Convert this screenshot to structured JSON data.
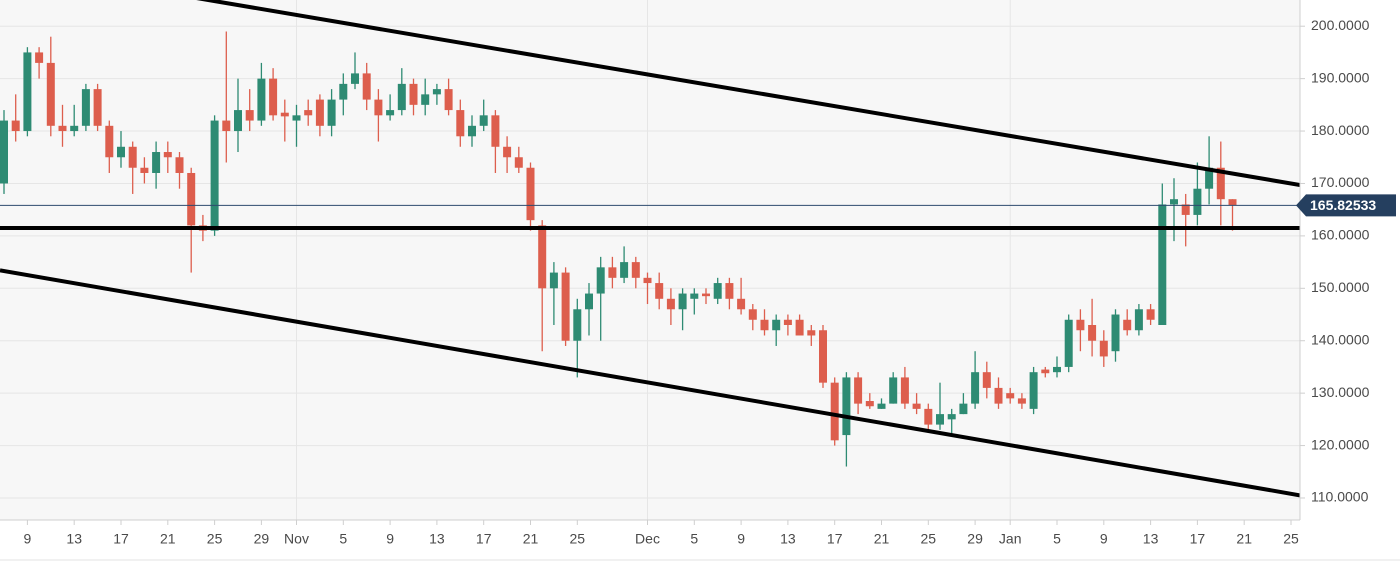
{
  "chart_data": {
    "type": "candlestick",
    "categories": [
      null,
      null,
      "9",
      null,
      null,
      null,
      "13",
      null,
      null,
      null,
      "17",
      null,
      null,
      null,
      "21",
      null,
      null,
      null,
      "25",
      null,
      null,
      null,
      "29",
      null,
      null,
      "Nov",
      null,
      null,
      null,
      "5",
      null,
      null,
      null,
      "9",
      null,
      null,
      null,
      "13",
      null,
      null,
      null,
      "17",
      null,
      null,
      null,
      "21",
      null,
      null,
      null,
      "25",
      null,
      null,
      null,
      null,
      null,
      "Dec",
      null,
      null,
      null,
      "5",
      null,
      null,
      null,
      "9",
      null,
      null,
      null,
      "13",
      null,
      null,
      null,
      "17",
      null,
      null,
      null,
      "21",
      null,
      null,
      null,
      "25",
      null,
      null,
      null,
      "29",
      null,
      null,
      "Jan",
      null,
      null,
      null,
      "5",
      null,
      null,
      null,
      "9",
      null,
      null,
      null,
      "13",
      null,
      null,
      null,
      "17",
      null,
      null,
      null,
      "21",
      null,
      null,
      null,
      "25"
    ],
    "candles": [
      [
        170,
        184,
        168,
        182
      ],
      [
        182,
        187,
        178,
        180
      ],
      [
        180,
        196,
        179,
        195
      ],
      [
        195,
        196,
        190,
        193
      ],
      [
        193,
        198,
        179,
        181
      ],
      [
        181,
        185,
        177,
        180
      ],
      [
        180,
        185,
        179,
        181
      ],
      [
        181,
        189,
        180,
        188
      ],
      [
        188,
        189,
        180,
        181
      ],
      [
        181,
        182,
        172,
        175
      ],
      [
        175,
        180,
        173,
        177
      ],
      [
        177,
        178,
        168,
        173
      ],
      [
        173,
        175,
        170,
        172
      ],
      [
        172,
        178,
        169,
        176
      ],
      [
        176,
        178,
        172,
        175
      ],
      [
        175,
        176,
        169,
        172
      ],
      [
        172,
        173,
        153,
        162
      ],
      [
        162,
        164,
        159,
        161
      ],
      [
        161,
        183,
        160,
        182
      ],
      [
        182,
        199,
        174,
        180
      ],
      [
        180,
        190,
        176,
        184
      ],
      [
        184,
        188,
        180,
        182
      ],
      [
        182,
        193,
        181,
        190
      ],
      [
        190,
        192,
        182,
        183
      ],
      [
        183.5,
        186,
        178,
        182.8
      ],
      [
        182,
        185,
        177,
        183
      ],
      [
        184,
        186,
        181,
        183
      ],
      [
        186,
        187,
        179,
        181
      ],
      [
        181,
        188,
        179,
        186
      ],
      [
        186,
        191,
        183,
        189
      ],
      [
        189,
        195,
        188,
        191
      ],
      [
        191,
        193,
        184,
        186
      ],
      [
        186,
        188,
        178,
        183
      ],
      [
        183,
        187,
        182,
        184
      ],
      [
        184,
        192,
        183,
        189
      ],
      [
        189,
        190,
        183,
        185
      ],
      [
        185,
        190,
        183,
        187
      ],
      [
        187,
        189,
        185,
        188
      ],
      [
        188,
        190,
        183,
        184
      ],
      [
        184,
        186,
        177,
        179
      ],
      [
        179,
        183,
        177,
        181
      ],
      [
        181,
        186,
        180,
        183
      ],
      [
        183,
        184,
        172,
        177
      ],
      [
        177,
        179,
        172,
        175
      ],
      [
        175,
        177,
        172,
        173
      ],
      [
        173,
        174,
        161,
        163
      ],
      [
        162,
        163,
        138,
        150
      ],
      [
        150,
        155,
        143,
        153
      ],
      [
        153,
        154,
        139,
        140
      ],
      [
        140,
        148,
        133,
        146
      ],
      [
        146,
        151,
        141,
        149
      ],
      [
        149,
        156,
        140,
        154
      ],
      [
        154,
        156,
        150,
        152
      ],
      [
        152,
        158,
        151,
        155
      ],
      [
        155,
        156,
        150,
        152
      ],
      [
        152,
        153,
        147,
        151
      ],
      [
        151,
        153,
        146,
        148
      ],
      [
        148,
        150,
        143,
        146
      ],
      [
        146,
        150,
        142,
        149
      ],
      [
        148,
        150,
        145,
        149
      ],
      [
        149,
        150,
        147,
        148.5
      ],
      [
        148,
        152,
        147,
        151
      ],
      [
        151,
        152,
        146,
        148
      ],
      [
        148,
        152,
        145,
        146
      ],
      [
        146,
        147,
        142,
        144
      ],
      [
        144,
        146,
        141,
        142
      ],
      [
        142,
        145,
        139,
        144
      ],
      [
        144,
        145,
        141,
        143
      ],
      [
        144,
        145,
        141,
        141
      ],
      [
        142,
        143,
        139,
        141
      ],
      [
        142,
        143,
        131,
        132
      ],
      [
        132,
        133,
        120,
        121
      ],
      [
        122,
        134,
        116,
        133
      ],
      [
        133,
        134,
        126,
        128
      ],
      [
        128.5,
        130,
        127,
        127.5
      ],
      [
        127,
        129,
        127,
        128
      ],
      [
        128,
        134,
        128,
        133
      ],
      [
        133,
        135,
        127,
        128
      ],
      [
        128,
        130,
        126,
        127
      ],
      [
        127,
        128,
        123,
        124
      ],
      [
        124,
        132,
        123,
        126
      ],
      [
        125,
        127,
        122,
        126
      ],
      [
        126,
        130,
        126,
        128
      ],
      [
        128,
        138,
        127,
        134
      ],
      [
        134,
        136,
        129,
        131
      ],
      [
        131,
        133,
        127,
        128
      ],
      [
        130,
        131,
        128,
        129
      ],
      [
        129,
        130,
        127,
        128
      ],
      [
        127,
        135,
        126,
        134
      ],
      [
        134.5,
        135,
        133,
        133.8
      ],
      [
        134,
        137,
        133,
        135
      ],
      [
        135,
        145,
        134,
        144
      ],
      [
        144,
        146,
        138,
        142
      ],
      [
        143,
        148,
        137,
        140
      ],
      [
        140,
        142,
        135,
        137
      ],
      [
        138,
        146,
        136,
        145
      ],
      [
        144,
        146,
        141,
        142
      ],
      [
        142,
        147,
        141,
        146
      ],
      [
        146,
        147,
        143,
        144
      ],
      [
        143,
        170,
        143,
        166
      ],
      [
        166,
        171,
        159,
        167
      ],
      [
        166,
        168,
        158,
        164
      ],
      [
        164,
        174,
        162,
        169
      ],
      [
        169,
        179,
        166,
        173
      ],
      [
        173,
        178,
        162,
        167
      ],
      [
        167,
        167,
        161,
        165.8
      ],
      null,
      null,
      null,
      null,
      null
    ],
    "up_color": "#2e8b73",
    "down_color": "#dd5e4d",
    "trendlines": [
      {
        "values": [
          211.6,
          170.0
        ]
      },
      {
        "values": [
          153.3,
          110.8
        ]
      },
      {
        "values": [
          161.5,
          161.5
        ]
      }
    ],
    "last_price": 165.82533,
    "ylim": [
      105.8,
      205
    ],
    "yticks": [
      {
        "value": 110,
        "label": "110.0000"
      },
      {
        "value": 120,
        "label": "120.0000"
      },
      {
        "value": 130,
        "label": "130.0000"
      },
      {
        "value": 140,
        "label": "140.0000"
      },
      {
        "value": 150,
        "label": "150.0000"
      },
      {
        "value": 160,
        "label": "160.0000"
      },
      {
        "value": 170,
        "label": "170.0000"
      },
      {
        "value": 180,
        "label": "180.0000"
      },
      {
        "value": 190,
        "label": "190.0000"
      },
      {
        "value": 200,
        "label": "200.0000"
      }
    ],
    "grid": true
  }
}
